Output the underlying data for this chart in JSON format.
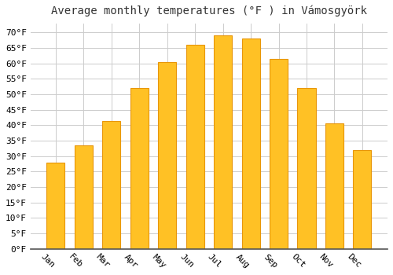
{
  "title": "Average monthly temperatures (°F ) in Vámosgyörk",
  "months": [
    "Jan",
    "Feb",
    "Mar",
    "Apr",
    "May",
    "Jun",
    "Jul",
    "Aug",
    "Sep",
    "Oct",
    "Nov",
    "Dec"
  ],
  "values": [
    28,
    33.5,
    41.5,
    52,
    60.5,
    66,
    69,
    68,
    61.5,
    52,
    40.5,
    32
  ],
  "bar_color": "#FFC125",
  "bar_edge_color": "#E8960A",
  "background_color": "#FFFFFF",
  "grid_color": "#CCCCCC",
  "ylim": [
    0,
    73
  ],
  "yticks": [
    0,
    5,
    10,
    15,
    20,
    25,
    30,
    35,
    40,
    45,
    50,
    55,
    60,
    65,
    70
  ],
  "title_fontsize": 10,
  "tick_fontsize": 8,
  "xlabel_rotation": -45
}
